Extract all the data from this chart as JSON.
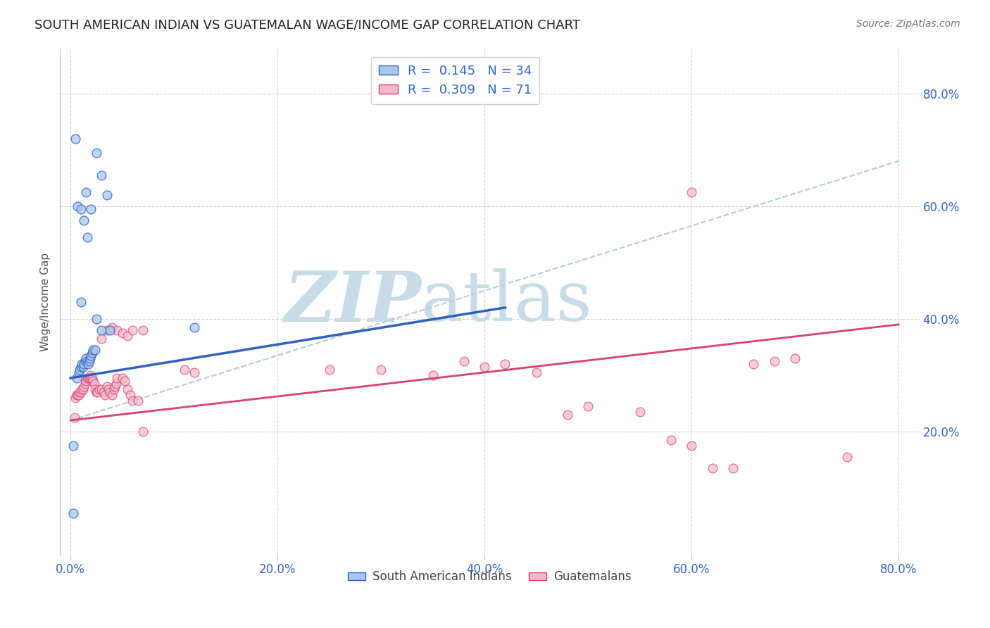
{
  "title": "SOUTH AMERICAN INDIAN VS GUATEMALAN WAGE/INCOME GAP CORRELATION CHART",
  "source": "Source: ZipAtlas.com",
  "xlabel_ticks": [
    "0.0%",
    "20.0%",
    "40.0%",
    "60.0%",
    "80.0%"
  ],
  "ylabel_label": "Wage/Income Gap",
  "ylabel_ticks": [
    "20.0%",
    "40.0%",
    "60.0%",
    "80.0%"
  ],
  "xlim": [
    -0.01,
    0.82
  ],
  "ylim": [
    -0.02,
    0.88
  ],
  "blue_scatter_x": [
    0.003,
    0.006,
    0.008,
    0.009,
    0.01,
    0.011,
    0.012,
    0.013,
    0.014,
    0.015,
    0.016,
    0.017,
    0.018,
    0.019,
    0.02,
    0.021,
    0.022,
    0.024,
    0.005,
    0.007,
    0.01,
    0.013,
    0.015,
    0.016,
    0.02,
    0.025,
    0.03,
    0.035,
    0.038,
    0.12,
    0.003,
    0.01,
    0.025,
    0.03
  ],
  "blue_scatter_y": [
    0.055,
    0.295,
    0.305,
    0.31,
    0.315,
    0.32,
    0.315,
    0.32,
    0.325,
    0.33,
    0.325,
    0.32,
    0.325,
    0.33,
    0.335,
    0.34,
    0.345,
    0.345,
    0.72,
    0.6,
    0.595,
    0.575,
    0.625,
    0.545,
    0.595,
    0.695,
    0.655,
    0.62,
    0.38,
    0.385,
    0.175,
    0.43,
    0.4,
    0.38
  ],
  "pink_scatter_x": [
    0.004,
    0.005,
    0.006,
    0.007,
    0.008,
    0.009,
    0.01,
    0.011,
    0.012,
    0.013,
    0.014,
    0.015,
    0.016,
    0.017,
    0.018,
    0.019,
    0.02,
    0.021,
    0.022,
    0.023,
    0.024,
    0.025,
    0.026,
    0.028,
    0.03,
    0.032,
    0.033,
    0.035,
    0.037,
    0.038,
    0.04,
    0.042,
    0.043,
    0.044,
    0.045,
    0.05,
    0.052,
    0.055,
    0.058,
    0.06,
    0.065,
    0.07,
    0.03,
    0.035,
    0.04,
    0.045,
    0.05,
    0.055,
    0.06,
    0.07,
    0.11,
    0.12,
    0.25,
    0.3,
    0.35,
    0.38,
    0.4,
    0.42,
    0.45,
    0.48,
    0.5,
    0.55,
    0.58,
    0.6,
    0.62,
    0.64,
    0.66,
    0.68,
    0.7,
    0.6,
    0.75
  ],
  "pink_scatter_y": [
    0.225,
    0.26,
    0.265,
    0.265,
    0.265,
    0.27,
    0.27,
    0.275,
    0.275,
    0.28,
    0.285,
    0.29,
    0.295,
    0.295,
    0.295,
    0.3,
    0.295,
    0.295,
    0.29,
    0.285,
    0.275,
    0.27,
    0.27,
    0.275,
    0.275,
    0.27,
    0.265,
    0.28,
    0.275,
    0.27,
    0.265,
    0.275,
    0.28,
    0.285,
    0.295,
    0.295,
    0.29,
    0.275,
    0.265,
    0.255,
    0.255,
    0.2,
    0.365,
    0.38,
    0.385,
    0.38,
    0.375,
    0.37,
    0.38,
    0.38,
    0.31,
    0.305,
    0.31,
    0.31,
    0.3,
    0.325,
    0.315,
    0.32,
    0.305,
    0.23,
    0.245,
    0.235,
    0.185,
    0.175,
    0.135,
    0.135,
    0.32,
    0.325,
    0.33,
    0.625,
    0.155
  ],
  "blue_line_x": [
    0.0,
    0.42
  ],
  "blue_line_y": [
    0.295,
    0.42
  ],
  "pink_line_x": [
    0.0,
    0.8
  ],
  "pink_line_y": [
    0.22,
    0.39
  ],
  "dash_line_x": [
    0.0,
    0.8
  ],
  "dash_line_y": [
    0.22,
    0.68
  ],
  "scatter_blue_color": "#a8c8f0",
  "scatter_pink_color": "#f5b8c8",
  "line_blue_color": "#3060c0",
  "line_pink_color": "#d84070",
  "dash_line_color": "#b0cce0",
  "title_color": "#222222",
  "source_color": "#777777",
  "tick_label_color": "#3366cc",
  "grid_color": "#cccccc",
  "watermark_zip_color": "#c8dce8",
  "watermark_atlas_color": "#c8dce8",
  "legend_label1": "South American Indians",
  "legend_label2": "Guatemalans"
}
